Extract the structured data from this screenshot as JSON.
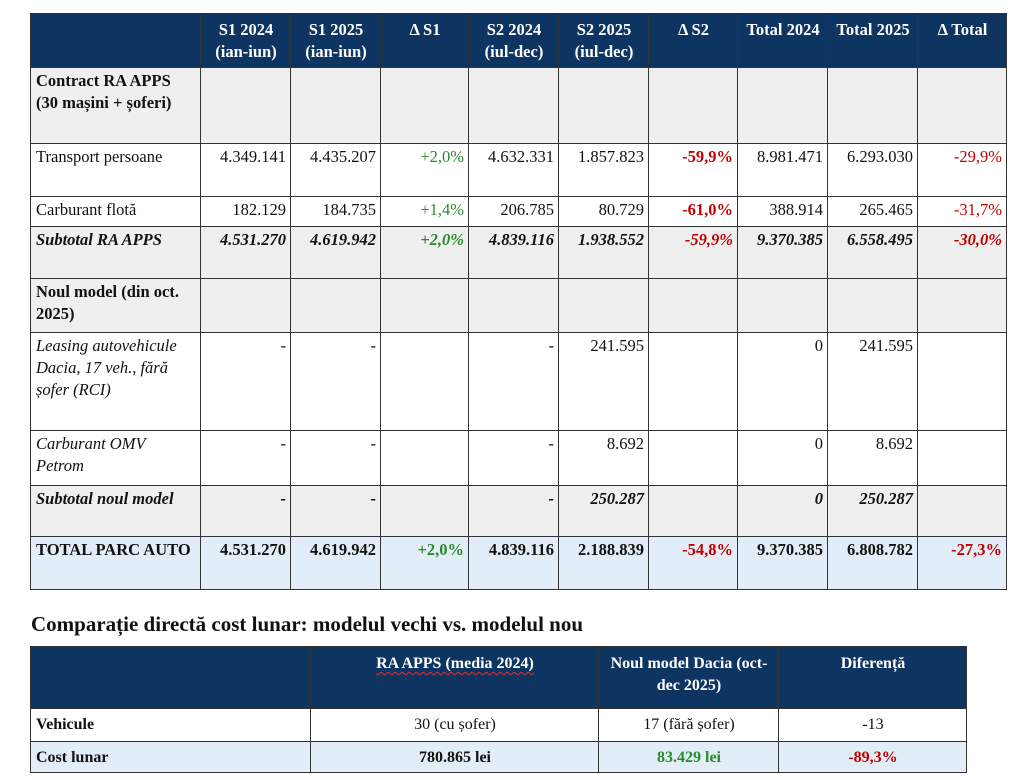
{
  "table1": {
    "headers": [
      "",
      "S1 2024 (ian-iun)",
      "S1 2025 (ian-iun)",
      "Δ S1",
      "S2 2024 (iul-dec)",
      "S2 2025 (iul-dec)",
      "Δ S2",
      "Total 2024",
      "Total 2025",
      "Δ Total"
    ],
    "rows": [
      {
        "type": "section",
        "cells": [
          "Contract RA APPS (30 mașini + șoferi)",
          "",
          "",
          "",
          "",
          "",
          "",
          "",
          "",
          ""
        ]
      },
      {
        "type": "item",
        "cells": [
          "Transport persoane",
          "4.349.141",
          "4.435.207",
          "+2,0%",
          "4.632.331",
          "1.857.823",
          "-59,9%",
          "8.981.471",
          "6.293.030",
          "-29,9%"
        ]
      },
      {
        "type": "item",
        "cells": [
          "Carburant flotă",
          "182.129",
          "184.735",
          "+1,4%",
          "206.785",
          "80.729",
          "-61,0%",
          "388.914",
          "265.465",
          "-31,7%"
        ]
      },
      {
        "type": "subtotal",
        "cells": [
          "Subtotal RA APPS",
          "4.531.270",
          "4.619.942",
          "+2,0%",
          "4.839.116",
          "1.938.552",
          "-59,9%",
          "9.370.385",
          "6.558.495",
          "-30,0%"
        ]
      },
      {
        "type": "section",
        "cells": [
          "Noul model (din oct. 2025)",
          "",
          "",
          "",
          "",
          "",
          "",
          "",
          "",
          ""
        ]
      },
      {
        "type": "item-italic",
        "cells": [
          "Leasing autovehicule Dacia, 17 veh., fără șofer (RCI)",
          "-",
          "-",
          "",
          "-",
          "241.595",
          "",
          "0",
          "241.595",
          ""
        ]
      },
      {
        "type": "item-italic",
        "cells": [
          "Carburant OMV Petrom",
          "-",
          "-",
          "",
          "-",
          "8.692",
          "",
          "0",
          "8.692",
          ""
        ]
      },
      {
        "type": "subtotal",
        "cells": [
          "Subtotal noul model",
          "-",
          "-",
          "",
          "-",
          "250.287",
          "",
          "0",
          "250.287",
          ""
        ]
      },
      {
        "type": "total",
        "cells": [
          "TOTAL PARC AUTO",
          "4.531.270",
          "4.619.942",
          "+2,0%",
          "4.839.116",
          "2.188.839",
          "-54,8%",
          "9.370.385",
          "6.808.782",
          "-27,3%"
        ]
      }
    ]
  },
  "section2": {
    "title": "Comparație directă cost lunar: modelul vechi vs. modelul nou",
    "headers": [
      "",
      "RA APPS (media 2024)",
      "Noul model Dacia (oct-dec 2025)",
      "Diferență"
    ],
    "rows": [
      {
        "label": "Vehicule",
        "old": "30 (cu șofer)",
        "new": "17 (fără șofer)",
        "diff": "-13"
      },
      {
        "label": "Cost lunar",
        "old": "780.865 lei",
        "new": "83.429 lei",
        "diff": "-89,3%"
      }
    ]
  },
  "colors": {
    "header_bg": "#0e3461",
    "positive": "#2c8a2c",
    "negative": "#c00000",
    "section_bg": "#efefef",
    "total_bg": "#e3edf7"
  }
}
